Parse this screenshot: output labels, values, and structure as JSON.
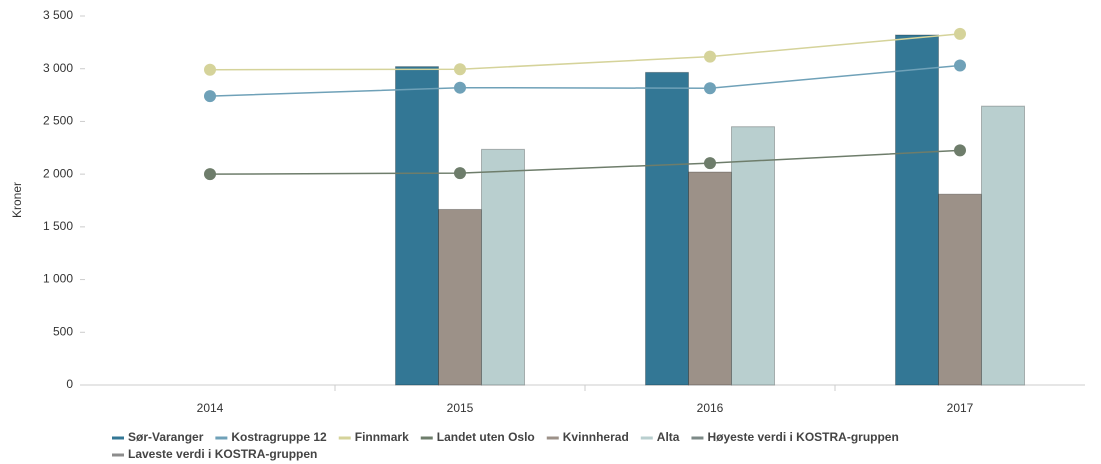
{
  "chart_data": {
    "type": "bar",
    "y_label": "Kroner",
    "categories": [
      "2014",
      "2015",
      "2016",
      "2017"
    ],
    "ylim": [
      0,
      3500
    ],
    "yticks": [
      0,
      500,
      {
        "value": 1000,
        "label": "1 000"
      },
      {
        "value": 1500,
        "label": "1 500"
      },
      {
        "value": 2000,
        "label": "2 000"
      },
      {
        "value": 2500,
        "label": "2 500"
      },
      {
        "value": 3000,
        "label": "3 000"
      },
      {
        "value": 3500,
        "label": "3 500"
      }
    ],
    "series": [
      {
        "name": "Sør-Varanger",
        "type": "bar",
        "color": "#337795",
        "values": [
          null,
          3020,
          2965,
          3320
        ]
      },
      {
        "name": "Kostragruppe 12",
        "type": "line",
        "color": "#6fa1b8",
        "values": [
          2740,
          2820,
          2815,
          3030
        ]
      },
      {
        "name": "Finnmark",
        "type": "line",
        "color": "#d5d39a",
        "values": [
          2990,
          2995,
          3115,
          3330
        ]
      },
      {
        "name": "Landet uten Oslo",
        "type": "line",
        "color": "#6e7d6b",
        "values": [
          2000,
          2010,
          2105,
          2225
        ]
      },
      {
        "name": "Kvinnherad",
        "type": "bar",
        "color": "#9c9188",
        "values": [
          null,
          1665,
          2020,
          1810
        ]
      },
      {
        "name": "Alta",
        "type": "bar",
        "color": "#b9cfcf",
        "values": [
          null,
          2235,
          2450,
          2645
        ]
      },
      {
        "name": "Høyeste verdi i KOSTRA-gruppen",
        "type": "line",
        "color": "#7d8a87",
        "values": [
          null,
          null,
          null,
          null
        ]
      },
      {
        "name": "Laveste verdi i KOSTRA-gruppen",
        "type": "line",
        "color": "#8c8c8c",
        "values": [
          null,
          null,
          null,
          null
        ]
      }
    ]
  }
}
